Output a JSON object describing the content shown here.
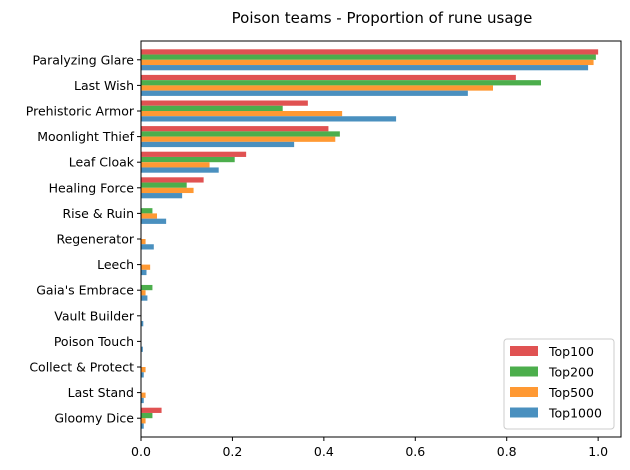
{
  "chart_data": {
    "type": "bar",
    "orientation": "horizontal",
    "title": "Poison teams - Proportion of rune usage",
    "xlabel": "",
    "ylabel": "",
    "xlim": [
      0,
      1.05
    ],
    "xticks": [
      "0.0",
      "0.2",
      "0.4",
      "0.6",
      "0.8",
      "1.0"
    ],
    "grid": false,
    "legend_position": "bottom-right",
    "categories": [
      "Paralyzing Glare",
      "Last Wish",
      "Prehistoric Armor",
      "Moonlight Thief",
      "Leaf Cloak",
      "Healing Force",
      "Rise & Ruin",
      "Regenerator",
      "Leech",
      "Gaia's Embrace",
      "Vault Builder",
      "Poison Touch",
      "Collect & Protect",
      "Last Stand",
      "Gloomy Dice"
    ],
    "series": [
      {
        "name": "Top100",
        "color": "#e05252",
        "values": [
          1.0,
          0.82,
          0.365,
          0.41,
          0.23,
          0.137,
          0.0,
          0.0,
          0.0,
          0.0,
          0.0,
          0.0,
          0.0,
          0.0,
          0.045
        ]
      },
      {
        "name": "Top200",
        "color": "#4cae4c",
        "values": [
          0.995,
          0.875,
          0.31,
          0.435,
          0.205,
          0.1,
          0.025,
          0.0,
          0.0,
          0.025,
          0.0,
          0.0,
          0.0,
          0.0,
          0.025
        ]
      },
      {
        "name": "Top500",
        "color": "#ff9933",
        "values": [
          0.99,
          0.77,
          0.44,
          0.425,
          0.15,
          0.115,
          0.035,
          0.01,
          0.02,
          0.01,
          0.0,
          0.0,
          0.01,
          0.01,
          0.01
        ]
      },
      {
        "name": "Top1000",
        "color": "#4a90bf",
        "values": [
          0.978,
          0.715,
          0.558,
          0.335,
          0.17,
          0.09,
          0.055,
          0.028,
          0.012,
          0.014,
          0.005,
          0.004,
          0.006,
          0.006,
          0.006
        ]
      }
    ]
  }
}
